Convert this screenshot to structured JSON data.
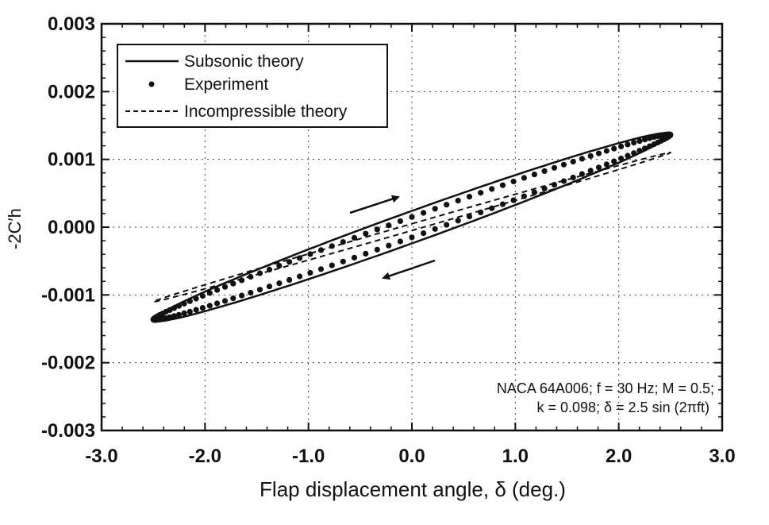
{
  "chart_data": {
    "type": "line",
    "xlabel": "Flap displacement angle, δ (deg.)",
    "ylabel": "-2C′h",
    "xlim": [
      -3.0,
      3.0
    ],
    "ylim": [
      -0.003,
      0.003
    ],
    "x_ticks": [
      "-3.0",
      "-2.0",
      "-1.0",
      "0.0",
      "1.0",
      "2.0",
      "3.0"
    ],
    "y_ticks": [
      "-0.003",
      "-0.002",
      "-0.001",
      "0.000",
      "0.001",
      "0.002",
      "0.003"
    ],
    "grid": true,
    "legend_position": "top-left",
    "annotation_lines": [
      "NACA 64A006;  f = 30 Hz;  M = 0.5;",
      "k = 0.098;  δ = 2.5 sin (2πft)"
    ],
    "series": [
      {
        "name": "Subsonic theory",
        "style": "solid",
        "center_slope": 0.000548,
        "loop_half_width": 0.00024,
        "amplitude_deg": 2.5
      },
      {
        "name": "Experiment",
        "style": "markers",
        "center_slope": 0.000545,
        "loop_half_width": 0.00015,
        "amplitude_deg": 2.5
      },
      {
        "name": "Incompressible theory",
        "style": "dashed",
        "center_slope": 0.00044,
        "loop_half_width": 5e-05,
        "amplitude_deg": 2.5
      }
    ],
    "arrows": [
      "upper-right",
      "lower-left"
    ]
  }
}
